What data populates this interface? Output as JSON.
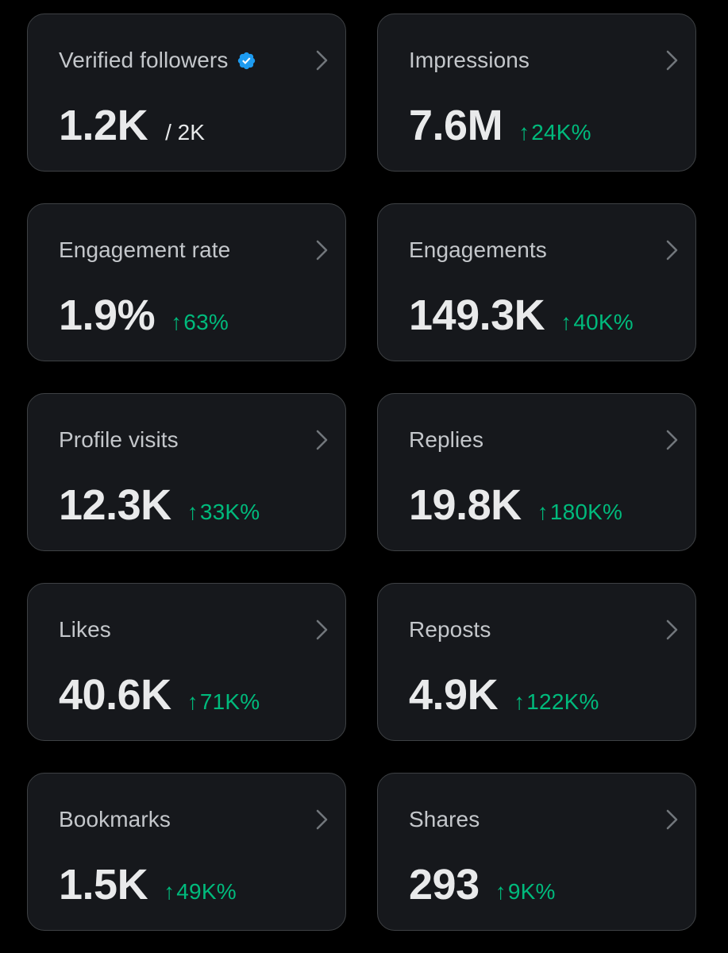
{
  "colors": {
    "background": "#000000",
    "card": "#16181c",
    "card_border": "#3e4144",
    "label": "#c4c7cb",
    "value": "#e9eaeb",
    "positive": "#00ba7c",
    "verified": "#1d9bf0"
  },
  "icons": {
    "verified": "verified-badge-icon",
    "chevron": "chevron-right-icon",
    "arrow_up": "↑"
  },
  "cards": [
    {
      "label": "Verified followers",
      "value": "1.2K",
      "suffix": "/ 2K"
    },
    {
      "label": "Impressions",
      "value": "7.6M",
      "change": "24K%"
    },
    {
      "label": "Engagement rate",
      "value": "1.9%",
      "change": "63%"
    },
    {
      "label": "Engagements",
      "value": "149.3K",
      "change": "40K%"
    },
    {
      "label": "Profile visits",
      "value": "12.3K",
      "change": "33K%"
    },
    {
      "label": "Replies",
      "value": "19.8K",
      "change": "180K%"
    },
    {
      "label": "Likes",
      "value": "40.6K",
      "change": "71K%"
    },
    {
      "label": "Reposts",
      "value": "4.9K",
      "change": "122K%"
    },
    {
      "label": "Bookmarks",
      "value": "1.5K",
      "change": "49K%"
    },
    {
      "label": "Shares",
      "value": "293",
      "change": "9K%"
    }
  ]
}
